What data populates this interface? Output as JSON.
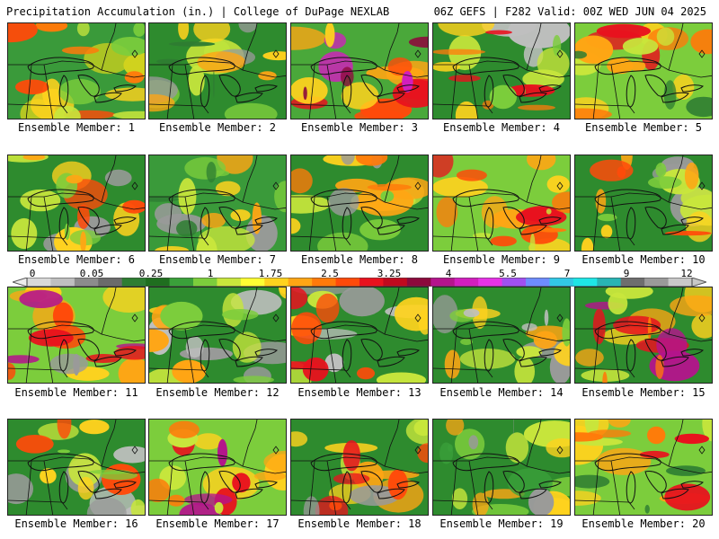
{
  "header": {
    "title": "Precipitation Accumulation (in.) | College of DuPage NEXLAB",
    "info": "06Z GEFS | F282 Valid: 00Z WED JUN 04 2025"
  },
  "colorbar": {
    "labels": [
      "0",
      "0.05",
      "0.25",
      "1",
      "1.75",
      "2.5",
      "3.25",
      "4",
      "5.5",
      "7",
      "9",
      "12"
    ],
    "colors": [
      "#d9d9d9",
      "#bfbfbf",
      "#8c8c8c",
      "#6b6b6b",
      "#2e7d32",
      "#1f6e1f",
      "#3aa03a",
      "#7ccd3c",
      "#c8e63c",
      "#ffff33",
      "#ffd21e",
      "#ffa514",
      "#ff7a0a",
      "#ff4a0a",
      "#e8121e",
      "#c00a1e",
      "#8c0a3c",
      "#b4148c",
      "#d21ebe",
      "#e632e6",
      "#a050f0",
      "#6e8cff",
      "#32c8e6",
      "#1ee6e6",
      "#28b4b4",
      "#6e6e6e",
      "#9a9a9a",
      "#c8c8c8"
    ]
  },
  "members": [
    {
      "label": "Ensemble Member: 1",
      "base": "#3a9a3a",
      "blobs": [
        "#d2d21e",
        "#ffd21e",
        "#ff7a0a",
        "#ff4a0a",
        "#c8e63c",
        "#7ccd3c"
      ]
    },
    {
      "label": "Ensemble Member: 2",
      "base": "#2e8b2e",
      "blobs": [
        "#7ccd3c",
        "#c8e63c",
        "#9a9a9a",
        "#ffd21e",
        "#ffa514",
        "#2e7d32"
      ]
    },
    {
      "label": "Ensemble Member: 3",
      "base": "#4aa83a",
      "blobs": [
        "#ffa514",
        "#ff4a0a",
        "#e8121e",
        "#d21ebe",
        "#ffd21e",
        "#8c0a3c"
      ]
    },
    {
      "label": "Ensemble Member: 4",
      "base": "#2e8b2e",
      "blobs": [
        "#bfbfbf",
        "#c8e63c",
        "#ffd21e",
        "#ff7a0a",
        "#e8121e",
        "#7ccd3c"
      ]
    },
    {
      "label": "Ensemble Member: 5",
      "base": "#7ccd3c",
      "blobs": [
        "#ffd21e",
        "#ff7a0a",
        "#e8121e",
        "#c8e63c",
        "#ffa514",
        "#2e7d32"
      ]
    },
    {
      "label": "Ensemble Member: 6",
      "base": "#2e8b2e",
      "blobs": [
        "#9a9a9a",
        "#c8e63c",
        "#ffd21e",
        "#ff4a0a",
        "#7ccd3c",
        "#ffa514"
      ]
    },
    {
      "label": "Ensemble Member: 7",
      "base": "#3a9a3a",
      "blobs": [
        "#9a9a9a",
        "#c8e63c",
        "#ffd21e",
        "#ffa514",
        "#7ccd3c",
        "#2e7d32"
      ]
    },
    {
      "label": "Ensemble Member: 8",
      "base": "#2e8b2e",
      "blobs": [
        "#c8e63c",
        "#ffd21e",
        "#ffa514",
        "#7ccd3c",
        "#9a9a9a",
        "#ff7a0a"
      ]
    },
    {
      "label": "Ensemble Member: 9",
      "base": "#7ccd3c",
      "blobs": [
        "#ffd21e",
        "#ffa514",
        "#e8121e",
        "#ff4a0a",
        "#c8e63c",
        "#ff7a0a"
      ]
    },
    {
      "label": "Ensemble Member: 10",
      "base": "#2e8b2e",
      "blobs": [
        "#9a9a9a",
        "#c8e63c",
        "#ffd21e",
        "#ffa514",
        "#ff4a0a",
        "#7ccd3c"
      ]
    },
    {
      "label": "Ensemble Member: 11",
      "base": "#7ccd3c",
      "blobs": [
        "#ffd21e",
        "#ffa514",
        "#ff4a0a",
        "#b4148c",
        "#e8121e",
        "#9a9a9a"
      ]
    },
    {
      "label": "Ensemble Member: 12",
      "base": "#2e8b2e",
      "blobs": [
        "#9a9a9a",
        "#bfbfbf",
        "#c8e63c",
        "#ffd21e",
        "#ffa514",
        "#7ccd3c"
      ]
    },
    {
      "label": "Ensemble Member: 13",
      "base": "#2e8b2e",
      "blobs": [
        "#bfbfbf",
        "#9a9a9a",
        "#c8e63c",
        "#ffd21e",
        "#ff4a0a",
        "#e8121e"
      ]
    },
    {
      "label": "Ensemble Member: 14",
      "base": "#2e8b2e",
      "blobs": [
        "#9a9a9a",
        "#c8e63c",
        "#ffd21e",
        "#ffa514",
        "#7ccd3c",
        "#bfbfbf"
      ]
    },
    {
      "label": "Ensemble Member: 15",
      "base": "#2e8b2e",
      "blobs": [
        "#ffd21e",
        "#ffa514",
        "#e8121e",
        "#b4148c",
        "#c8e63c",
        "#ff7a0a"
      ]
    },
    {
      "label": "Ensemble Member: 16",
      "base": "#2e8b2e",
      "blobs": [
        "#bfbfbf",
        "#9a9a9a",
        "#c8e63c",
        "#ffd21e",
        "#ff4a0a",
        "#7ccd3c"
      ]
    },
    {
      "label": "Ensemble Member: 17",
      "base": "#7ccd3c",
      "blobs": [
        "#ffd21e",
        "#ffa514",
        "#e8121e",
        "#b4148c",
        "#c8e63c",
        "#ff7a0a"
      ]
    },
    {
      "label": "Ensemble Member: 18",
      "base": "#2e8b2e",
      "blobs": [
        "#c8e63c",
        "#ffd21e",
        "#ffa514",
        "#e8121e",
        "#9a9a9a",
        "#ff4a0a"
      ]
    },
    {
      "label": "Ensemble Member: 19",
      "base": "#2e8b2e",
      "blobs": [
        "#7ccd3c",
        "#c8e63c",
        "#ffd21e",
        "#ffa514",
        "#3aa03a",
        "#9a9a9a"
      ]
    },
    {
      "label": "Ensemble Member: 20",
      "base": "#7ccd3c",
      "blobs": [
        "#ffd21e",
        "#ffa514",
        "#c8e63c",
        "#ff7a0a",
        "#2e7d32",
        "#e8121e"
      ]
    }
  ]
}
